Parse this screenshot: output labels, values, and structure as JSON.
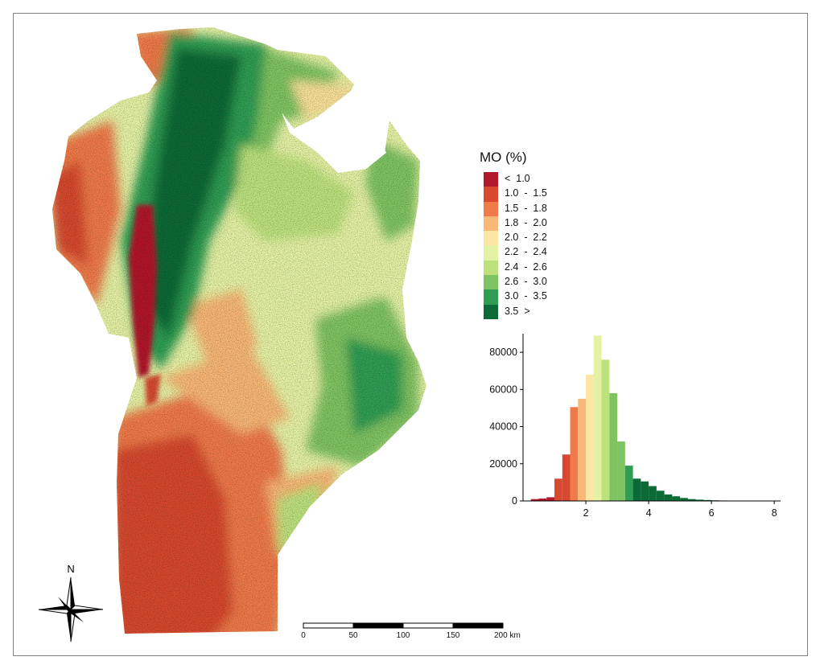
{
  "legend": {
    "title": "MO (%)",
    "classes": [
      {
        "label": "<  1.0",
        "color": "#b2182b"
      },
      {
        "label": "1.0  -  1.5",
        "color": "#d7482f"
      },
      {
        "label": "1.5  -  1.8",
        "color": "#f07a4a"
      },
      {
        "label": "1.8  -  2.0",
        "color": "#f9b875"
      },
      {
        "label": "2.0  -  2.2",
        "color": "#fbe7a3"
      },
      {
        "label": "2.2  -  2.4",
        "color": "#e4f2a4"
      },
      {
        "label": "2.4  -  2.6",
        "color": "#bde27d"
      },
      {
        "label": "2.6  -  3.0",
        "color": "#7fc462"
      },
      {
        "label": "3.0  -  3.5",
        "color": "#2f9e52"
      },
      {
        "label": "3.5  >",
        "color": "#0b6a36"
      }
    ]
  },
  "chart_data": {
    "type": "bar",
    "title": "",
    "xlabel": "",
    "ylabel": "",
    "xlim": [
      0,
      8.2
    ],
    "ylim": [
      0,
      90000
    ],
    "x_ticks": [
      2,
      4,
      6,
      8
    ],
    "y_ticks": [
      0,
      20000,
      40000,
      60000,
      80000
    ],
    "bin_width": 0.25,
    "bins": [
      {
        "x": 0.25,
        "value": 1000,
        "color": "#b2182b"
      },
      {
        "x": 0.5,
        "value": 1300,
        "color": "#b2182b"
      },
      {
        "x": 0.75,
        "value": 2000,
        "color": "#b2182b"
      },
      {
        "x": 1.0,
        "value": 12000,
        "color": "#d7482f"
      },
      {
        "x": 1.25,
        "value": 25000,
        "color": "#d7482f"
      },
      {
        "x": 1.5,
        "value": 50500,
        "color": "#f07a4a"
      },
      {
        "x": 1.75,
        "value": 55000,
        "color": "#f9b875"
      },
      {
        "x": 2.0,
        "value": 68000,
        "color": "#fbe7a3"
      },
      {
        "x": 2.25,
        "value": 89000,
        "color": "#e4f2a4"
      },
      {
        "x": 2.5,
        "value": 76000,
        "color": "#bde27d"
      },
      {
        "x": 2.75,
        "value": 58000,
        "color": "#7fc462"
      },
      {
        "x": 3.0,
        "value": 32000,
        "color": "#7fc462"
      },
      {
        "x": 3.25,
        "value": 19000,
        "color": "#2f9e52"
      },
      {
        "x": 3.5,
        "value": 12000,
        "color": "#0b6a36"
      },
      {
        "x": 3.75,
        "value": 10500,
        "color": "#0b6a36"
      },
      {
        "x": 4.0,
        "value": 8000,
        "color": "#0b6a36"
      },
      {
        "x": 4.25,
        "value": 5500,
        "color": "#0b6a36"
      },
      {
        "x": 4.5,
        "value": 3500,
        "color": "#0b6a36"
      },
      {
        "x": 4.75,
        "value": 2500,
        "color": "#0b6a36"
      },
      {
        "x": 5.0,
        "value": 1600,
        "color": "#0b6a36"
      },
      {
        "x": 5.25,
        "value": 1000,
        "color": "#0b6a36"
      },
      {
        "x": 5.5,
        "value": 700,
        "color": "#0b6a36"
      },
      {
        "x": 5.75,
        "value": 500,
        "color": "#0b6a36"
      },
      {
        "x": 6.0,
        "value": 350,
        "color": "#0b6a36"
      },
      {
        "x": 6.25,
        "value": 250,
        "color": "#0b6a36"
      },
      {
        "x": 6.5,
        "value": 150,
        "color": "#0b6a36"
      }
    ]
  },
  "scalebar": {
    "ticks": [
      "0",
      "50",
      "100",
      "150",
      "200 km"
    ]
  },
  "north_arrow": {
    "label": "N"
  }
}
